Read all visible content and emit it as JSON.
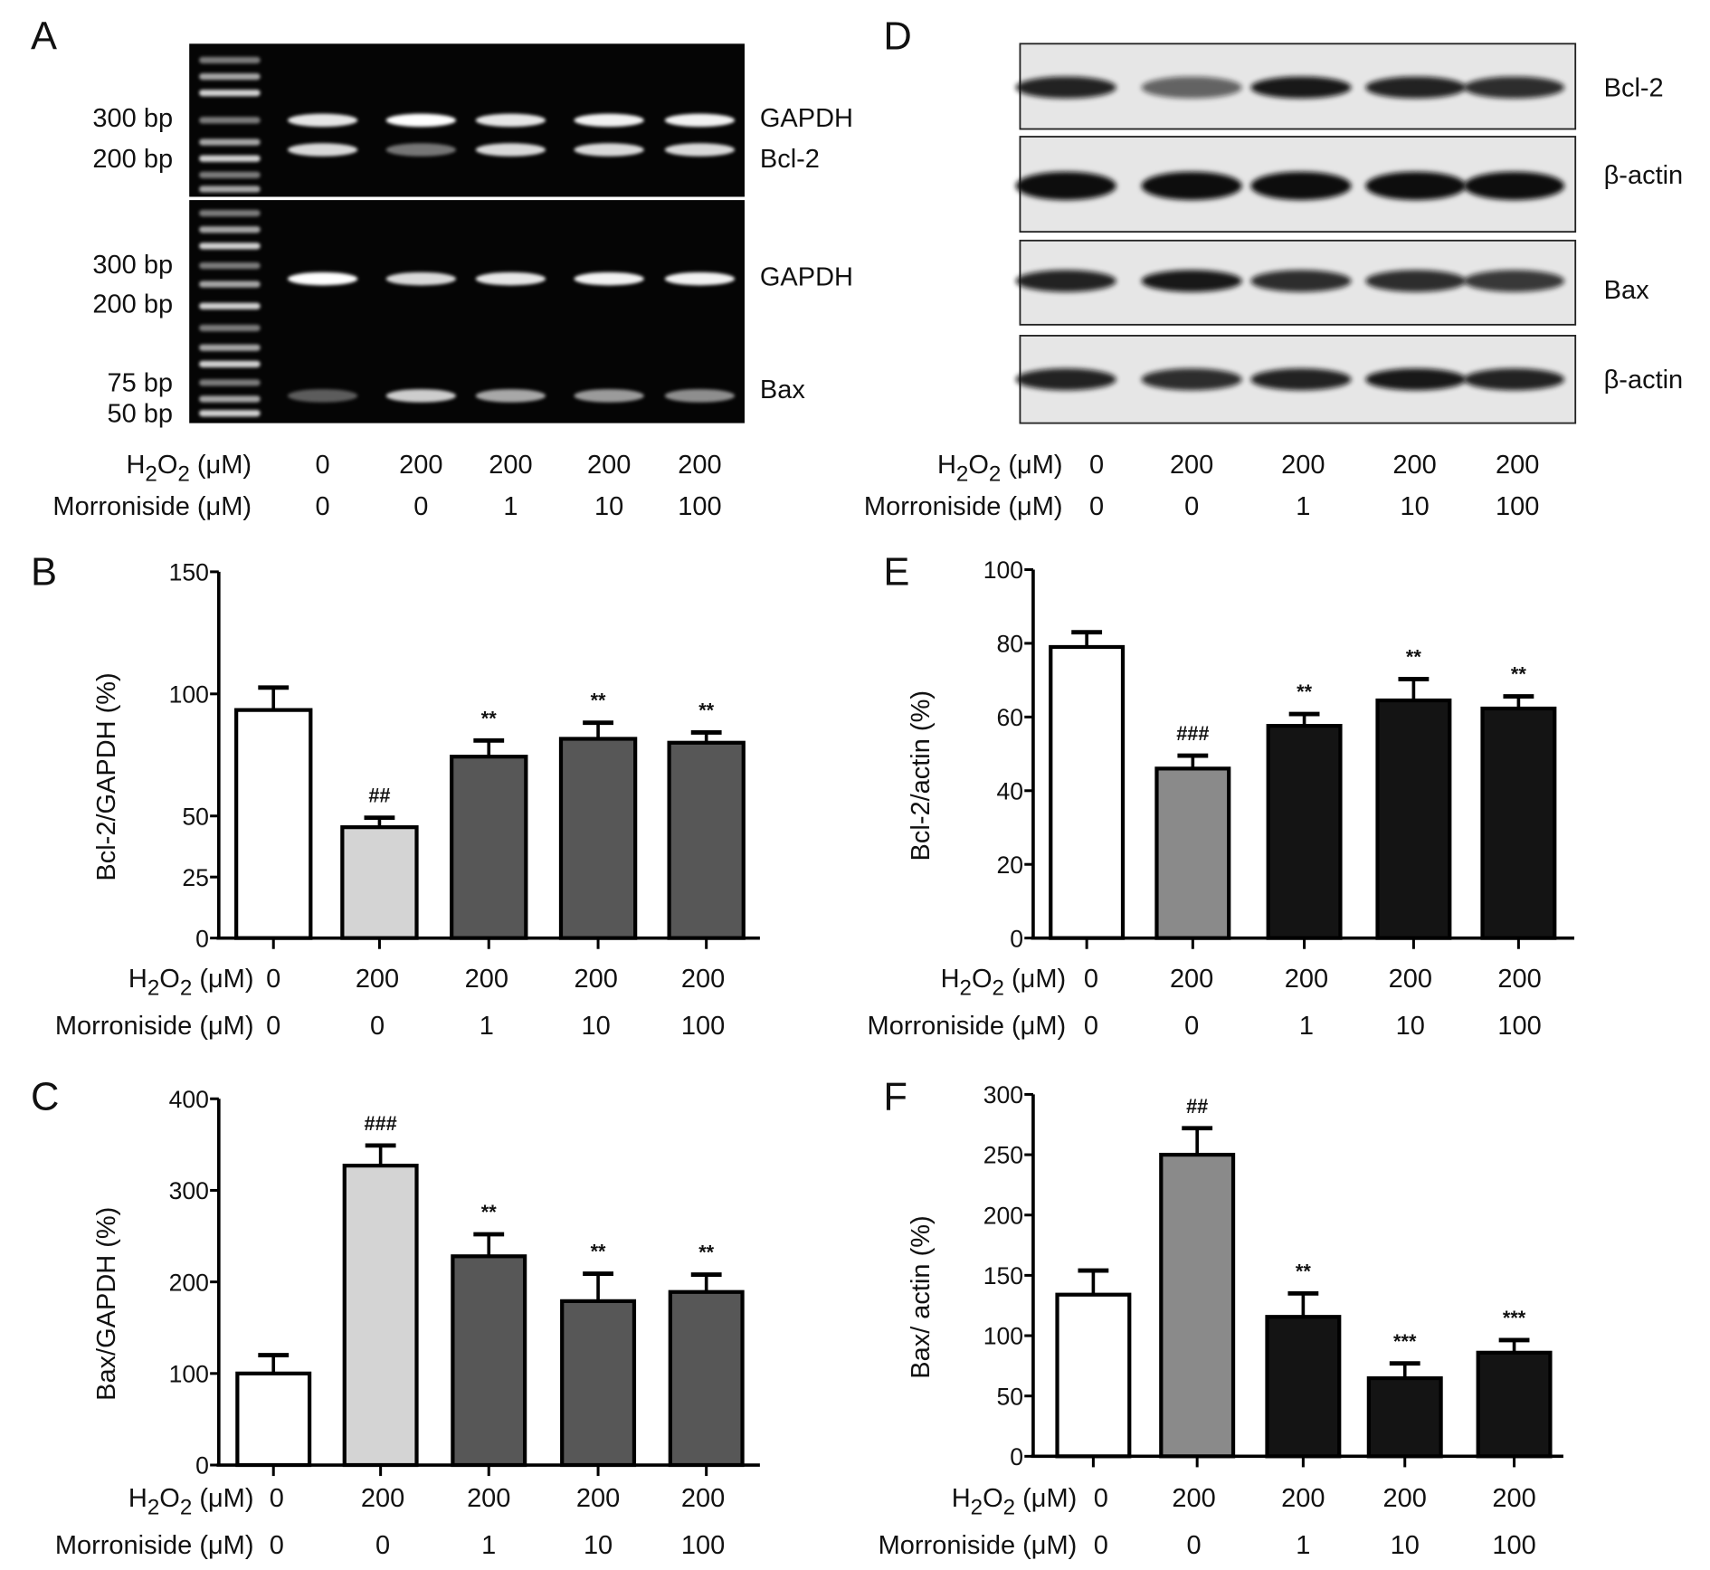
{
  "panels": {
    "A": {
      "letter": "A",
      "ladder_labels_top": [
        "300 bp",
        "200 bp"
      ],
      "ladder_labels_bottom": [
        "300 bp",
        "200 bp",
        "75 bp",
        "50 bp"
      ],
      "band_labels_top": [
        "GAPDH",
        "Bcl-2"
      ],
      "band_labels_bottom": [
        "GAPDH",
        "Bax"
      ],
      "band_intensity": {
        "GAPDH_top": [
          0.9,
          1.0,
          0.9,
          0.95,
          0.95
        ],
        "Bcl2": [
          0.85,
          0.45,
          0.85,
          0.85,
          0.85
        ],
        "GAPDH_bottom": [
          1.0,
          0.85,
          0.9,
          0.95,
          0.95
        ],
        "Bax": [
          0.35,
          0.8,
          0.65,
          0.6,
          0.55
        ]
      }
    },
    "D": {
      "letter": "D",
      "blot_labels": [
        "Bcl-2",
        "β-actin",
        "Bax",
        "β-actin"
      ],
      "band_intensity": [
        [
          0.9,
          0.6,
          0.95,
          0.9,
          0.85
        ],
        [
          1.0,
          1.0,
          1.0,
          1.0,
          1.0
        ],
        [
          0.9,
          0.95,
          0.85,
          0.85,
          0.8
        ],
        [
          0.9,
          0.85,
          0.9,
          0.95,
          0.9
        ]
      ]
    }
  },
  "conditions": {
    "h2o2_label": "H₂O₂ (μM)",
    "morroniside_label": "Morroniside (μM)",
    "h2o2_values": [
      "0",
      "200",
      "200",
      "200",
      "200"
    ],
    "morroniside_values": [
      "0",
      "0",
      "1",
      "10",
      "100"
    ]
  },
  "colors": {
    "control": "#ffffff",
    "h2o2_rtpcr": "#d4d4d4",
    "treated_rtpcr": "#575757",
    "h2o2_western": "#8a8a8a",
    "treated_western": "#141414"
  },
  "chart_data": [
    {
      "panel": "B",
      "type": "bar",
      "ylabel": "Bcl-2/GAPDH (%)",
      "ylim": [
        0,
        150
      ],
      "yticks": [
        0,
        25,
        50,
        100,
        150
      ],
      "values": [
        93.4,
        45.4,
        74.3,
        81.6,
        80.0
      ],
      "errors": [
        9.2,
        3.9,
        6.6,
        6.6,
        4.2
      ],
      "annotations": [
        "",
        "##",
        "**",
        "**",
        "**"
      ],
      "fills": [
        "control",
        "h2o2_rtpcr",
        "treated_rtpcr",
        "treated_rtpcr",
        "treated_rtpcr"
      ]
    },
    {
      "panel": "C",
      "type": "bar",
      "ylabel": "Bax/GAPDH (%)",
      "ylim": [
        0,
        400
      ],
      "yticks": [
        0,
        100,
        200,
        300,
        400
      ],
      "values": [
        100,
        327,
        228,
        179,
        189
      ],
      "errors": [
        20,
        22,
        24,
        30,
        19
      ],
      "annotations": [
        "",
        "###",
        "**",
        "**",
        "**"
      ],
      "fills": [
        "control",
        "h2o2_rtpcr",
        "treated_rtpcr",
        "treated_rtpcr",
        "treated_rtpcr"
      ]
    },
    {
      "panel": "E",
      "type": "bar",
      "ylabel": "Bcl-2/actin (%)",
      "ylim": [
        0,
        100
      ],
      "yticks": [
        0,
        20,
        40,
        60,
        80,
        100
      ],
      "values": [
        79,
        46,
        57.6,
        64.5,
        62.3
      ],
      "errors": [
        4,
        3.5,
        3.2,
        5.8,
        3.3
      ],
      "annotations": [
        "",
        "###",
        "**",
        "**",
        "**"
      ],
      "fills": [
        "control",
        "h2o2_western",
        "treated_western",
        "treated_western",
        "treated_western"
      ]
    },
    {
      "panel": "F",
      "type": "bar",
      "ylabel": "Bax/ actin (%)",
      "ylim": [
        0,
        300
      ],
      "yticks": [
        0,
        50,
        100,
        150,
        200,
        250,
        300
      ],
      "values": [
        134,
        250,
        115.6,
        64.7,
        85.9
      ],
      "errors": [
        20,
        22,
        19.4,
        12.3,
        10.4
      ],
      "annotations": [
        "",
        "##",
        "**",
        "***",
        "***"
      ],
      "fills": [
        "control",
        "h2o2_western",
        "treated_western",
        "treated_western",
        "treated_western"
      ]
    }
  ]
}
